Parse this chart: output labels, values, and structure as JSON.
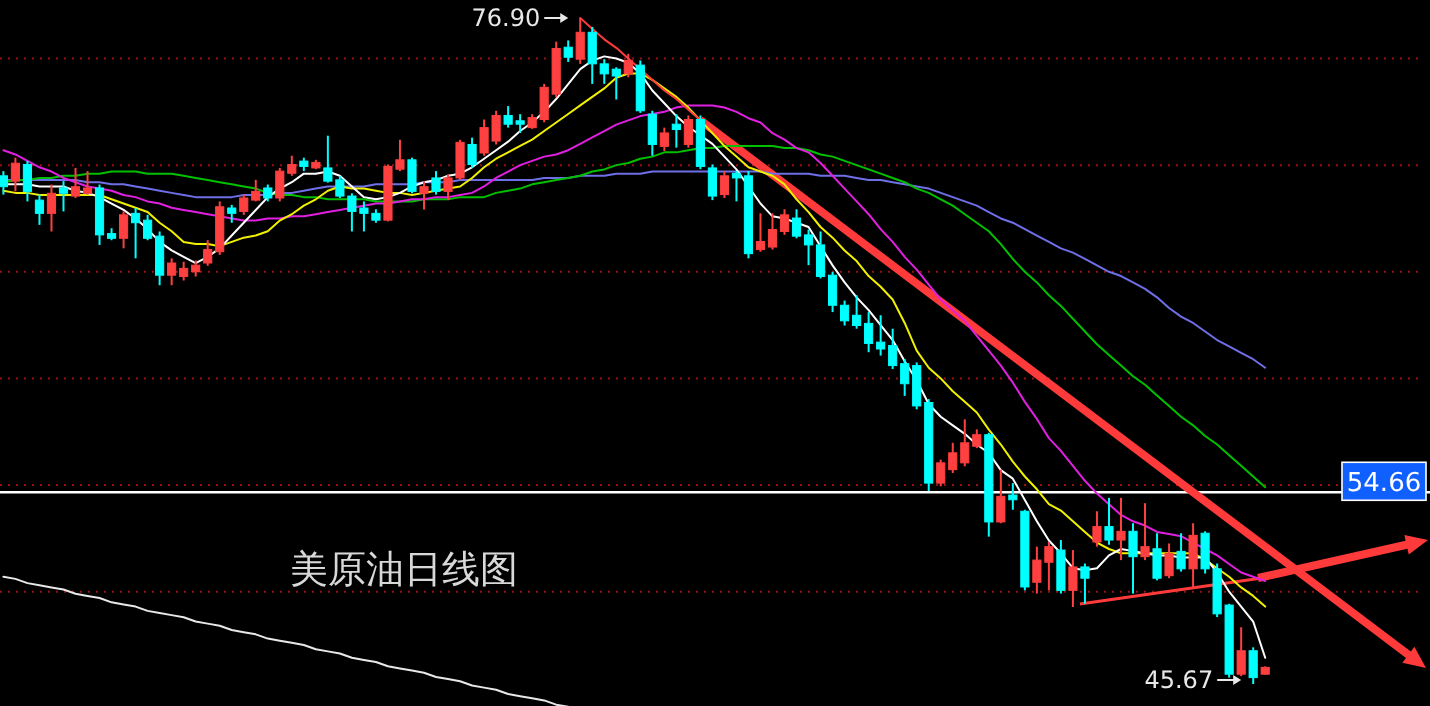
{
  "chart_data": {
    "type": "candlestick",
    "categories": [
      null,
      null,
      null,
      null,
      null,
      null,
      null,
      null,
      null,
      null,
      null,
      null,
      null,
      null,
      null,
      null,
      null,
      null,
      null,
      null,
      null,
      null,
      null,
      null,
      null,
      null,
      null,
      null,
      null,
      null,
      null,
      null,
      null,
      null,
      null,
      null,
      null,
      null,
      null,
      null,
      null,
      null,
      null,
      null,
      null,
      null,
      null,
      null,
      null,
      null,
      null,
      null,
      null,
      null,
      null,
      null,
      null,
      null,
      null,
      null,
      null,
      null,
      null,
      null,
      null,
      null,
      null,
      null,
      null,
      null,
      null,
      null,
      null,
      null,
      null,
      null,
      null,
      null,
      null,
      null,
      null,
      null,
      null,
      null,
      null,
      null,
      null,
      null,
      null,
      null,
      null,
      null,
      null,
      null,
      null,
      null,
      null,
      null,
      null,
      null,
      null,
      null,
      null,
      null,
      null,
      null
    ],
    "ohlc": [
      [
        69.5,
        69.72,
        68.62,
        68.99
      ],
      [
        69.25,
        70.35,
        68.77,
        70.09
      ],
      [
        70.03,
        70.19,
        68.3,
        68.77
      ],
      [
        68.36,
        68.62,
        67.2,
        67.74
      ],
      [
        67.74,
        69.09,
        66.89,
        68.68
      ],
      [
        68.93,
        69.25,
        67.83,
        68.68
      ],
      [
        68.55,
        69.87,
        68.46,
        68.99
      ],
      [
        68.68,
        69.72,
        68.62,
        68.93
      ],
      [
        68.93,
        69.09,
        66.26,
        66.73
      ],
      [
        66.79,
        67.04,
        66.48,
        66.57
      ],
      [
        66.57,
        67.83,
        66.1,
        67.67
      ],
      [
        67.74,
        67.99,
        65.63,
        67.3
      ],
      [
        67.42,
        67.67,
        66.48,
        66.57
      ],
      [
        66.67,
        66.89,
        64.37,
        64.84
      ],
      [
        64.84,
        65.63,
        64.37,
        65.41
      ],
      [
        64.78,
        65.47,
        64.59,
        65.16
      ],
      [
        65.0,
        65.53,
        64.78,
        65.31
      ],
      [
        65.41,
        66.48,
        65.28,
        66.04
      ],
      [
        65.94,
        68.3,
        65.79,
        68.05
      ],
      [
        67.99,
        68.14,
        67.3,
        67.74
      ],
      [
        67.83,
        68.62,
        67.67,
        68.46
      ],
      [
        68.36,
        69.31,
        68.3,
        68.77
      ],
      [
        68.93,
        69.09,
        68.3,
        68.46
      ],
      [
        68.46,
        69.87,
        68.3,
        69.72
      ],
      [
        69.62,
        70.44,
        69.5,
        70.03
      ],
      [
        70.19,
        70.35,
        69.72,
        69.94
      ],
      [
        69.87,
        70.25,
        69.81,
        70.13
      ],
      [
        69.87,
        71.38,
        69.18,
        69.25
      ],
      [
        69.31,
        69.5,
        68.46,
        68.55
      ],
      [
        68.55,
        68.68,
        66.89,
        67.83
      ],
      [
        67.99,
        68.3,
        66.89,
        67.74
      ],
      [
        67.74,
        67.93,
        67.3,
        67.42
      ],
      [
        67.42,
        70.03,
        67.36,
        69.94
      ],
      [
        69.81,
        71.19,
        69.72,
        70.25
      ],
      [
        70.25,
        70.35,
        68.68,
        68.77
      ],
      [
        68.68,
        69.25,
        67.92,
        68.99
      ],
      [
        69.4,
        69.72,
        68.62,
        68.77
      ],
      [
        68.77,
        69.56,
        68.36,
        69.4
      ],
      [
        69.4,
        71.19,
        69.31,
        71.07
      ],
      [
        70.97,
        71.29,
        69.87,
        70.03
      ],
      [
        70.57,
        72.14,
        70.44,
        71.76
      ],
      [
        71.13,
        72.55,
        70.97,
        72.33
      ],
      [
        72.33,
        72.77,
        71.76,
        71.92
      ],
      [
        72.08,
        72.39,
        71.51,
        71.92
      ],
      [
        71.76,
        72.39,
        71.7,
        72.23
      ],
      [
        72.14,
        73.81,
        72.01,
        73.65
      ],
      [
        73.33,
        75.79,
        73.18,
        75.47
      ],
      [
        75.53,
        75.85,
        74.84,
        75.06
      ],
      [
        74.97,
        76.9,
        74.75,
        76.23
      ],
      [
        76.23,
        76.48,
        73.81,
        74.75
      ],
      [
        74.75,
        74.97,
        73.81,
        74.28
      ],
      [
        74.5,
        74.59,
        73.08,
        74.18
      ],
      [
        74.28,
        75.22,
        74.12,
        74.91
      ],
      [
        74.69,
        74.91,
        72.45,
        72.55
      ],
      [
        72.39,
        72.55,
        70.44,
        70.97
      ],
      [
        70.88,
        71.76,
        70.66,
        71.51
      ],
      [
        71.92,
        72.39,
        70.82,
        71.67
      ],
      [
        70.97,
        72.33,
        70.82,
        72.14
      ],
      [
        72.14,
        72.33,
        69.81,
        69.94
      ],
      [
        69.87,
        70.03,
        68.36,
        68.55
      ],
      [
        68.62,
        69.72,
        68.46,
        69.5
      ],
      [
        69.62,
        69.72,
        68.3,
        69.4
      ],
      [
        69.5,
        69.72,
        65.63,
        65.85
      ],
      [
        66.04,
        67.74,
        65.94,
        66.42
      ],
      [
        66.16,
        67.74,
        66.04,
        66.98
      ],
      [
        66.89,
        67.93,
        66.73,
        67.67
      ],
      [
        67.52,
        67.93,
        66.57,
        66.67
      ],
      [
        66.73,
        66.98,
        65.31,
        66.26
      ],
      [
        66.26,
        66.89,
        64.69,
        64.78
      ],
      [
        64.84,
        65.0,
        63.11,
        63.43
      ],
      [
        63.43,
        63.65,
        62.48,
        62.7
      ],
      [
        62.96,
        63.9,
        62.33,
        62.48
      ],
      [
        62.58,
        63.11,
        61.23,
        61.64
      ],
      [
        61.7,
        62.96,
        61.07,
        61.38
      ],
      [
        61.54,
        62.33,
        60.44,
        60.6
      ],
      [
        60.69,
        60.91,
        59.18,
        59.75
      ],
      [
        60.6,
        60.75,
        58.55,
        58.71
      ],
      [
        58.87,
        59.03,
        54.72,
        55.09
      ],
      [
        55.09,
        56.19,
        54.94,
        56.04
      ],
      [
        55.72,
        56.98,
        55.56,
        56.51
      ],
      [
        56.04,
        58.08,
        55.88,
        56.98
      ],
      [
        56.82,
        57.61,
        56.73,
        57.36
      ],
      [
        57.36,
        57.45,
        52.58,
        53.27
      ],
      [
        53.27,
        55.72,
        53.21,
        54.47
      ],
      [
        54.53,
        55.09,
        53.84,
        54.31
      ],
      [
        53.77,
        53.84,
        50.06,
        50.22
      ],
      [
        50.44,
        52.11,
        49.91,
        51.48
      ],
      [
        51.38,
        52.33,
        50.06,
        52.11
      ],
      [
        51.95,
        52.42,
        49.91,
        50.06
      ],
      [
        50.06,
        51.95,
        49.28,
        51.16
      ],
      [
        51.16,
        51.32,
        49.43,
        50.63
      ],
      [
        52.33,
        53.77,
        52.11,
        53.05
      ],
      [
        53.05,
        54.4,
        52.2,
        52.42
      ],
      [
        52.42,
        54.4,
        51.48,
        52.83
      ],
      [
        52.83,
        53.21,
        49.91,
        51.64
      ],
      [
        51.64,
        54.15,
        51.48,
        52.11
      ],
      [
        52.01,
        52.74,
        50.53,
        50.63
      ],
      [
        50.75,
        52.26,
        50.63,
        51.79
      ],
      [
        51.89,
        52.74,
        50.94,
        51.07
      ],
      [
        51.07,
        53.21,
        50.22,
        52.64
      ],
      [
        52.74,
        52.83,
        50.85,
        51.07
      ],
      [
        51.07,
        51.32,
        48.81,
        48.96
      ],
      [
        49.37,
        49.43,
        45.97,
        46.13
      ],
      [
        46.13,
        48.33,
        46.04,
        47.23
      ],
      [
        47.23,
        47.39,
        45.67,
        45.97
      ],
      [
        46.13,
        46.5,
        46.1,
        46.45
      ]
    ],
    "yticks": [
      {
        "value": 50,
        "label": null
      },
      {
        "value": 55,
        "label": null
      },
      {
        "value": 60,
        "label": null
      },
      {
        "value": 65,
        "label": null
      },
      {
        "value": 70,
        "label": null
      },
      {
        "value": 75,
        "label": null
      }
    ],
    "grid": "y",
    "tick_labels": false,
    "series": [
      {
        "type": "line",
        "color": "#6f6fe8",
        "values": [
          69.3,
          69.3,
          69.3,
          69.3,
          69.3,
          69.3,
          69.3,
          69.2,
          69.2,
          69.1,
          69.1,
          69.0,
          68.9,
          68.8,
          68.7,
          68.6,
          68.5,
          68.5,
          68.5,
          68.5,
          68.6,
          68.6,
          68.6,
          68.7,
          68.7,
          68.8,
          68.9,
          69.0,
          69.0,
          69.0,
          69.0,
          69.1,
          69.1,
          69.1,
          69.1,
          69.2,
          69.2,
          69.2,
          69.3,
          69.3,
          69.3,
          69.3,
          69.3,
          69.3,
          69.3,
          69.4,
          69.4,
          69.4,
          69.5,
          69.5,
          69.5,
          69.6,
          69.6,
          69.6,
          69.7,
          69.7,
          69.7,
          69.7,
          69.7,
          69.7,
          69.7,
          69.7,
          69.7,
          69.7,
          69.6,
          69.6,
          69.6,
          69.6,
          69.5,
          69.5,
          69.5,
          69.4,
          69.3,
          69.3,
          69.2,
          69.1,
          69.0,
          68.9,
          68.7,
          68.5,
          68.3,
          68.1,
          67.8,
          67.5,
          67.3,
          67.0,
          66.7,
          66.4,
          66.1,
          65.9,
          65.6,
          65.3,
          65.0,
          64.8,
          64.5,
          64.2,
          63.8,
          63.3,
          62.9,
          62.6,
          62.2,
          61.8,
          61.5,
          61.2,
          60.9,
          60.5
        ]
      },
      {
        "type": "line",
        "color": "#00c000",
        "values": [
          69.2,
          69.3,
          69.3,
          69.4,
          69.4,
          69.5,
          69.5,
          69.6,
          69.6,
          69.7,
          69.7,
          69.7,
          69.6,
          69.6,
          69.6,
          69.5,
          69.4,
          69.3,
          69.2,
          69.1,
          69.0,
          68.9,
          68.7,
          68.6,
          68.6,
          68.5,
          68.5,
          68.4,
          68.4,
          68.4,
          68.4,
          68.3,
          68.3,
          68.3,
          68.3,
          68.4,
          68.4,
          68.4,
          68.5,
          68.5,
          68.5,
          68.7,
          68.8,
          68.9,
          69.1,
          69.2,
          69.3,
          69.4,
          69.5,
          69.7,
          69.8,
          70.0,
          70.1,
          70.3,
          70.4,
          70.6,
          70.6,
          70.7,
          70.8,
          70.8,
          70.9,
          70.9,
          70.9,
          70.9,
          70.9,
          70.8,
          70.8,
          70.7,
          70.5,
          70.4,
          70.2,
          70.0,
          69.8,
          69.6,
          69.4,
          69.2,
          68.9,
          68.7,
          68.4,
          68.1,
          67.7,
          67.3,
          66.9,
          66.3,
          65.6,
          65.0,
          64.5,
          63.9,
          63.4,
          62.8,
          62.2,
          61.6,
          61.1,
          60.6,
          60.1,
          59.7,
          59.2,
          58.7,
          58.2,
          57.8,
          57.3,
          56.9,
          56.4,
          55.9,
          55.4,
          54.9
        ]
      },
      {
        "type": "line",
        "color": "#e020e0",
        "values": [
          70.7,
          70.5,
          70.2,
          69.9,
          69.7,
          69.4,
          69.2,
          69.0,
          68.9,
          68.8,
          68.6,
          68.5,
          68.3,
          68.2,
          68.0,
          67.9,
          67.8,
          67.7,
          67.6,
          67.5,
          67.4,
          67.4,
          67.5,
          67.5,
          67.6,
          67.6,
          67.7,
          67.8,
          67.9,
          68.0,
          68.1,
          68.2,
          68.2,
          68.3,
          68.4,
          68.4,
          68.5,
          68.5,
          68.6,
          68.7,
          69.0,
          69.4,
          69.7,
          70.0,
          70.2,
          70.4,
          70.5,
          70.7,
          71.0,
          71.3,
          71.6,
          71.9,
          72.1,
          72.3,
          72.4,
          72.5,
          72.7,
          72.8,
          72.8,
          72.8,
          72.7,
          72.5,
          72.2,
          72.0,
          71.5,
          71.2,
          70.8,
          70.6,
          70.1,
          69.5,
          68.9,
          68.3,
          67.7,
          67.0,
          66.4,
          65.7,
          65.1,
          64.4,
          63.7,
          63.2,
          62.7,
          62.0,
          61.3,
          60.6,
          59.8,
          58.9,
          58.1,
          57.2,
          56.6,
          55.9,
          55.2,
          54.6,
          54.1,
          53.6,
          53.3,
          53.1,
          52.8,
          52.7,
          52.6,
          52.3,
          52.0,
          51.7,
          51.3,
          50.9,
          50.7,
          50.5
        ]
      },
      {
        "type": "line",
        "color": "#f0f000",
        "values": [
          68.8,
          68.7,
          68.7,
          68.6,
          68.6,
          68.6,
          68.6,
          68.6,
          68.6,
          68.4,
          68.2,
          68.0,
          67.8,
          67.3,
          66.9,
          66.4,
          66.3,
          66.3,
          66.2,
          66.4,
          66.6,
          66.7,
          66.9,
          67.4,
          67.7,
          68.1,
          68.4,
          68.8,
          69.0,
          68.9,
          68.9,
          68.8,
          68.7,
          68.7,
          68.6,
          68.7,
          68.8,
          68.9,
          69.0,
          69.4,
          69.9,
          70.3,
          70.6,
          70.9,
          71.2,
          71.6,
          72.0,
          72.4,
          72.8,
          73.2,
          73.6,
          74.1,
          74.3,
          74.3,
          74.0,
          73.6,
          73.2,
          72.7,
          72.1,
          71.5,
          70.9,
          70.4,
          69.9,
          69.7,
          69.5,
          69.1,
          68.4,
          67.8,
          67.1,
          66.6,
          66.0,
          65.5,
          64.8,
          64.3,
          63.7,
          62.6,
          61.3,
          60.5,
          60.0,
          59.4,
          58.9,
          58.4,
          57.6,
          56.9,
          56.1,
          55.4,
          54.8,
          54.1,
          53.8,
          53.3,
          52.8,
          52.3,
          52.0,
          51.8,
          51.8,
          51.8,
          51.8,
          51.8,
          51.8,
          51.8,
          51.5,
          51.1,
          50.7,
          50.2,
          49.8,
          49.3
        ]
      },
      {
        "type": "line",
        "color": "#ffffff",
        "values": [
          69.1,
          69.1,
          69.1,
          69.0,
          69.0,
          69.0,
          68.8,
          68.7,
          68.5,
          68.2,
          67.9,
          67.5,
          67.0,
          66.4,
          66.0,
          65.7,
          65.4,
          65.7,
          66.1,
          66.7,
          67.3,
          67.9,
          68.5,
          68.9,
          69.2,
          69.6,
          69.6,
          69.7,
          69.5,
          69.0,
          68.5,
          68.4,
          68.5,
          68.7,
          69.0,
          69.2,
          69.3,
          69.5,
          69.6,
          69.9,
          70.3,
          70.7,
          71.1,
          71.6,
          72.0,
          72.5,
          73.1,
          73.8,
          74.5,
          74.9,
          75.1,
          75.0,
          74.8,
          74.3,
          73.5,
          72.9,
          72.3,
          71.8,
          71.4,
          71.0,
          70.4,
          69.8,
          69.0,
          68.2,
          67.6,
          67.5,
          67.3,
          67.1,
          66.2,
          65.3,
          64.5,
          63.8,
          63.2,
          62.5,
          61.8,
          60.8,
          59.9,
          58.8,
          58.2,
          57.8,
          57.4,
          56.9,
          56.5,
          55.7,
          55.3,
          54.3,
          53.3,
          52.4,
          51.8,
          51.1,
          51.0,
          51.1,
          51.7,
          52.0,
          51.9,
          51.8,
          51.7,
          51.7,
          51.6,
          51.6,
          51.6,
          50.9,
          50.0,
          49.3,
          48.6,
          46.9
        ]
      },
      {
        "type": "line",
        "color": "#ff3a3a",
        "values": [
          null,
          null,
          null,
          null,
          null,
          null,
          null,
          null,
          null,
          null,
          null,
          null,
          null,
          null,
          null,
          null,
          null,
          null,
          null,
          null,
          null,
          null,
          null,
          null,
          null,
          null,
          null,
          null,
          null,
          null,
          null,
          null,
          null,
          null,
          null,
          null,
          null,
          null,
          null,
          null,
          null,
          null,
          null,
          null,
          null,
          null,
          null,
          null,
          76.9,
          76.4,
          75.9,
          75.5,
          75.0,
          74.5,
          74.0,
          73.5,
          73.1,
          72.6,
          72.1,
          null,
          null,
          null,
          null,
          null,
          null,
          null,
          null,
          null,
          null,
          null,
          null,
          null,
          null,
          null,
          null,
          null,
          null,
          null,
          null,
          null,
          null,
          null,
          null,
          null,
          null,
          null,
          null,
          null,
          null,
          null,
          null,
          null,
          null,
          null,
          null,
          null,
          null,
          null,
          null,
          null,
          null,
          null,
          null,
          null,
          null,
          null
        ]
      },
      {
        "type": "line",
        "color": "#e8e8e8",
        "values": [
          50.7,
          50.6,
          50.4,
          50.3,
          50.2,
          50.1,
          49.9,
          49.8,
          49.7,
          49.5,
          49.4,
          49.3,
          49.1,
          49.0,
          48.9,
          48.8,
          48.6,
          48.5,
          48.4,
          48.2,
          48.1,
          48.0,
          47.8,
          47.7,
          47.6,
          47.5,
          47.3,
          47.2,
          47.1,
          46.9,
          46.8,
          46.7,
          46.5,
          46.4,
          46.3,
          46.2,
          46.0,
          45.9,
          45.8,
          45.6,
          45.5,
          45.4,
          45.2,
          45.1,
          45.0,
          44.9,
          44.7,
          44.6,
          null,
          null,
          null,
          null,
          null,
          null,
          null,
          null,
          null,
          null,
          null,
          null,
          null,
          null,
          null,
          null,
          null,
          null,
          null,
          null,
          null,
          null,
          null,
          null,
          null,
          null,
          null,
          null,
          null,
          null,
          null,
          null,
          null,
          null,
          null,
          null,
          null,
          null,
          null,
          null,
          null,
          null,
          null,
          null,
          null,
          null,
          null,
          null,
          null,
          null,
          null,
          null,
          null,
          null,
          null,
          null,
          null,
          null
        ]
      }
    ],
    "ref_lines": [
      {
        "axis": "y",
        "value": 54.66,
        "label": "54.66",
        "color": "#ffffff"
      }
    ],
    "annotations": [
      "美原油日线图",
      "76.90",
      "45.67"
    ]
  }
}
